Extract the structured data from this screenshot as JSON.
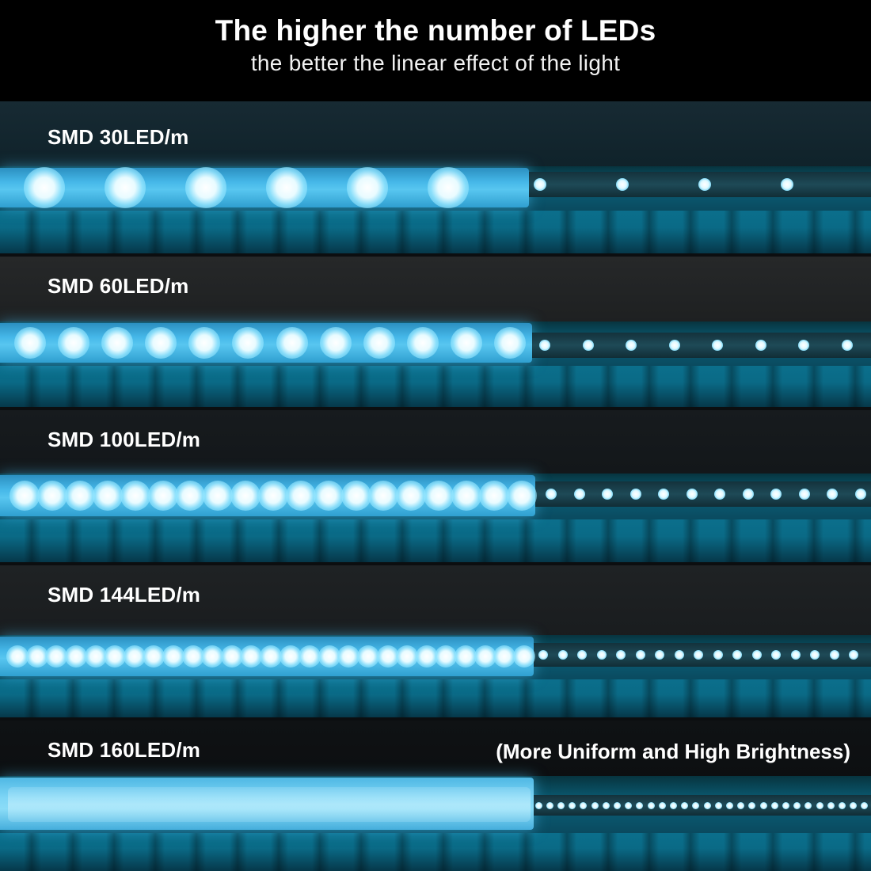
{
  "header": {
    "title": "The higher the number of LEDs",
    "subtitle": "the better the linear effect of the light"
  },
  "rows": [
    {
      "label": "SMD 30LED/m",
      "leds_per_meter": 30,
      "note": ""
    },
    {
      "label": "SMD 60LED/m",
      "leds_per_meter": 60,
      "note": ""
    },
    {
      "label": "SMD 100LED/m",
      "leds_per_meter": 100,
      "note": ""
    },
    {
      "label": "SMD 144LED/m",
      "leds_per_meter": 144,
      "note": ""
    },
    {
      "label": "SMD 160LED/m",
      "leds_per_meter": 160,
      "note": "(More Uniform and High Brightness)"
    }
  ],
  "colors": {
    "background": "#000000",
    "text": "#ffffff",
    "light": "#45b7e8"
  }
}
